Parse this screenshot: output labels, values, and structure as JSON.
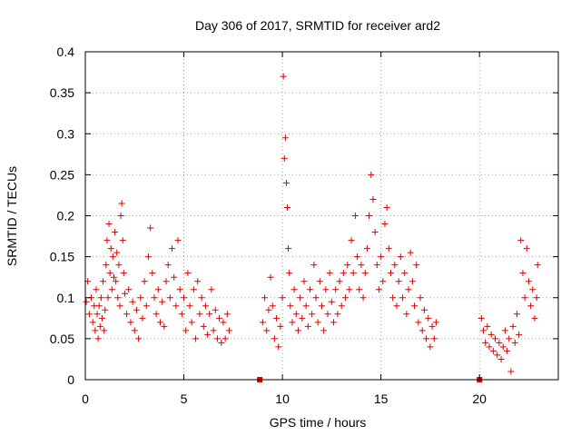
{
  "chart_data": {
    "type": "scatter",
    "title": "Day 306 of 2017, SRMTID for receiver ard2",
    "xlabel": "GPS time / hours",
    "ylabel": "SRMTID / TECUs",
    "xlim": [
      0,
      24
    ],
    "ylim": [
      0,
      0.4
    ],
    "xticks": [
      0,
      5,
      10,
      15,
      20
    ],
    "xtick_labels": [
      "0",
      "5",
      "10",
      "15",
      "20"
    ],
    "yticks": [
      0,
      0.05,
      0.1,
      0.15,
      0.2,
      0.25,
      0.3,
      0.35,
      0.4
    ],
    "ytick_labels": [
      "0",
      "0.05",
      "0.1",
      "0.15",
      "0.2",
      "0.25",
      "0.3",
      "0.35",
      "0.4"
    ],
    "grid": true,
    "marker": "plus",
    "series": [
      {
        "name": "SRMTID",
        "color": "#e00000",
        "points": [
          [
            0.05,
            0.095
          ],
          [
            0.12,
            0.12
          ],
          [
            0.2,
            0.08
          ],
          [
            0.3,
            0.1
          ],
          [
            0.38,
            0.07
          ],
          [
            0.45,
            0.09
          ],
          [
            0.5,
            0.06
          ],
          [
            0.55,
            0.11
          ],
          [
            0.6,
            0.08
          ],
          [
            0.65,
            0.05
          ],
          [
            0.7,
            0.09
          ],
          [
            0.75,
            0.065
          ],
          [
            0.8,
            0.1
          ],
          [
            0.85,
            0.075
          ],
          [
            0.9,
            0.12
          ],
          [
            0.95,
            0.06
          ],
          [
            1.0,
            0.085
          ],
          [
            1.05,
            0.14
          ],
          [
            1.1,
            0.17
          ],
          [
            1.15,
            0.1
          ],
          [
            1.2,
            0.19
          ],
          [
            1.25,
            0.13
          ],
          [
            1.3,
            0.16
          ],
          [
            1.35,
            0.11
          ],
          [
            1.4,
            0.15
          ],
          [
            1.45,
            0.125
          ],
          [
            1.5,
            0.18
          ],
          [
            1.55,
            0.12
          ],
          [
            1.6,
            0.155
          ],
          [
            1.65,
            0.1
          ],
          [
            1.7,
            0.14
          ],
          [
            1.75,
            0.09
          ],
          [
            1.8,
            0.2
          ],
          [
            1.85,
            0.215
          ],
          [
            1.9,
            0.17
          ],
          [
            1.95,
            0.13
          ],
          [
            2.0,
            0.105
          ],
          [
            2.1,
            0.08
          ],
          [
            2.2,
            0.11
          ],
          [
            2.3,
            0.07
          ],
          [
            2.4,
            0.095
          ],
          [
            2.5,
            0.06
          ],
          [
            2.6,
            0.085
          ],
          [
            2.7,
            0.05
          ],
          [
            2.8,
            0.1
          ],
          [
            2.9,
            0.075
          ],
          [
            3.0,
            0.12
          ],
          [
            3.1,
            0.09
          ],
          [
            3.2,
            0.15
          ],
          [
            3.3,
            0.185
          ],
          [
            3.4,
            0.13
          ],
          [
            3.5,
            0.1
          ],
          [
            3.6,
            0.08
          ],
          [
            3.7,
            0.11
          ],
          [
            3.8,
            0.07
          ],
          [
            3.9,
            0.095
          ],
          [
            4.0,
            0.065
          ],
          [
            4.1,
            0.12
          ],
          [
            4.2,
            0.14
          ],
          [
            4.3,
            0.1
          ],
          [
            4.4,
            0.16
          ],
          [
            4.5,
            0.125
          ],
          [
            4.6,
            0.09
          ],
          [
            4.7,
            0.17
          ],
          [
            4.8,
            0.11
          ],
          [
            4.9,
            0.08
          ],
          [
            5.0,
            0.1
          ],
          [
            5.1,
            0.06
          ],
          [
            5.2,
            0.13
          ],
          [
            5.3,
            0.09
          ],
          [
            5.4,
            0.07
          ],
          [
            5.5,
            0.11
          ],
          [
            5.6,
            0.05
          ],
          [
            5.7,
            0.12
          ],
          [
            5.8,
            0.08
          ],
          [
            5.9,
            0.1
          ],
          [
            6.0,
            0.065
          ],
          [
            6.1,
            0.09
          ],
          [
            6.2,
            0.055
          ],
          [
            6.3,
            0.08
          ],
          [
            6.4,
            0.11
          ],
          [
            6.5,
            0.06
          ],
          [
            6.6,
            0.085
          ],
          [
            6.7,
            0.05
          ],
          [
            6.8,
            0.075
          ],
          [
            6.9,
            0.045
          ],
          [
            7.0,
            0.07
          ],
          [
            7.1,
            0.05
          ],
          [
            7.2,
            0.08
          ],
          [
            7.3,
            0.06
          ],
          [
            8.85,
            0.0
          ],
          [
            9.0,
            0.07
          ],
          [
            9.1,
            0.1
          ],
          [
            9.2,
            0.06
          ],
          [
            9.3,
            0.085
          ],
          [
            9.4,
            0.125
          ],
          [
            9.5,
            0.09
          ],
          [
            9.6,
            0.05
          ],
          [
            9.7,
            0.075
          ],
          [
            9.8,
            0.04
          ],
          [
            9.9,
            0.065
          ],
          [
            10.0,
            0.1
          ],
          [
            10.05,
            0.37
          ],
          [
            10.1,
            0.27
          ],
          [
            10.15,
            0.295
          ],
          [
            10.2,
            0.24
          ],
          [
            10.25,
            0.21
          ],
          [
            10.3,
            0.16
          ],
          [
            10.35,
            0.13
          ],
          [
            10.4,
            0.09
          ],
          [
            10.5,
            0.07
          ],
          [
            10.6,
            0.11
          ],
          [
            10.7,
            0.08
          ],
          [
            10.8,
            0.06
          ],
          [
            10.9,
            0.1
          ],
          [
            11.0,
            0.075
          ],
          [
            11.1,
            0.12
          ],
          [
            11.2,
            0.09
          ],
          [
            11.3,
            0.065
          ],
          [
            11.4,
            0.11
          ],
          [
            11.5,
            0.08
          ],
          [
            11.6,
            0.14
          ],
          [
            11.7,
            0.1
          ],
          [
            11.8,
            0.07
          ],
          [
            11.9,
            0.12
          ],
          [
            12.0,
            0.09
          ],
          [
            12.1,
            0.06
          ],
          [
            12.2,
            0.11
          ],
          [
            12.3,
            0.08
          ],
          [
            12.4,
            0.13
          ],
          [
            12.5,
            0.095
          ],
          [
            12.6,
            0.07
          ],
          [
            12.7,
            0.11
          ],
          [
            12.8,
            0.08
          ],
          [
            12.9,
            0.12
          ],
          [
            13.0,
            0.09
          ],
          [
            13.1,
            0.13
          ],
          [
            13.2,
            0.1
          ],
          [
            13.3,
            0.14
          ],
          [
            13.4,
            0.11
          ],
          [
            13.5,
            0.17
          ],
          [
            13.6,
            0.13
          ],
          [
            13.7,
            0.2
          ],
          [
            13.8,
            0.15
          ],
          [
            13.9,
            0.11
          ],
          [
            14.0,
            0.14
          ],
          [
            14.1,
            0.1
          ],
          [
            14.2,
            0.13
          ],
          [
            14.3,
            0.16
          ],
          [
            14.4,
            0.2
          ],
          [
            14.5,
            0.25
          ],
          [
            14.6,
            0.22
          ],
          [
            14.7,
            0.18
          ],
          [
            14.8,
            0.14
          ],
          [
            14.9,
            0.11
          ],
          [
            15.0,
            0.15
          ],
          [
            15.1,
            0.12
          ],
          [
            15.2,
            0.19
          ],
          [
            15.3,
            0.21
          ],
          [
            15.4,
            0.16
          ],
          [
            15.5,
            0.13
          ],
          [
            15.6,
            0.1
          ],
          [
            15.7,
            0.14
          ],
          [
            15.8,
            0.09
          ],
          [
            15.9,
            0.12
          ],
          [
            16.0,
            0.15
          ],
          [
            16.1,
            0.1
          ],
          [
            16.2,
            0.13
          ],
          [
            16.3,
            0.08
          ],
          [
            16.4,
            0.11
          ],
          [
            16.5,
            0.155
          ],
          [
            16.6,
            0.12
          ],
          [
            16.7,
            0.09
          ],
          [
            16.8,
            0.14
          ],
          [
            16.9,
            0.07
          ],
          [
            17.0,
            0.1
          ],
          [
            17.1,
            0.06
          ],
          [
            17.2,
            0.085
          ],
          [
            17.3,
            0.05
          ],
          [
            17.4,
            0.075
          ],
          [
            17.5,
            0.04
          ],
          [
            17.6,
            0.065
          ],
          [
            17.7,
            0.05
          ],
          [
            17.8,
            0.07
          ],
          [
            20.0,
            0.0
          ],
          [
            20.1,
            0.075
          ],
          [
            20.2,
            0.06
          ],
          [
            20.3,
            0.045
          ],
          [
            20.4,
            0.065
          ],
          [
            20.5,
            0.04
          ],
          [
            20.6,
            0.055
          ],
          [
            20.7,
            0.035
          ],
          [
            20.8,
            0.05
          ],
          [
            20.9,
            0.03
          ],
          [
            21.0,
            0.045
          ],
          [
            21.1,
            0.025
          ],
          [
            21.2,
            0.04
          ],
          [
            21.3,
            0.06
          ],
          [
            21.4,
            0.035
          ],
          [
            21.5,
            0.05
          ],
          [
            21.6,
            0.01
          ],
          [
            21.7,
            0.065
          ],
          [
            21.8,
            0.045
          ],
          [
            21.9,
            0.08
          ],
          [
            22.0,
            0.055
          ],
          [
            22.1,
            0.17
          ],
          [
            22.2,
            0.13
          ],
          [
            22.3,
            0.1
          ],
          [
            22.4,
            0.16
          ],
          [
            22.5,
            0.12
          ],
          [
            22.6,
            0.09
          ],
          [
            22.7,
            0.11
          ],
          [
            22.8,
            0.075
          ],
          [
            22.9,
            0.1
          ],
          [
            22.95,
            0.14
          ]
        ]
      }
    ]
  }
}
